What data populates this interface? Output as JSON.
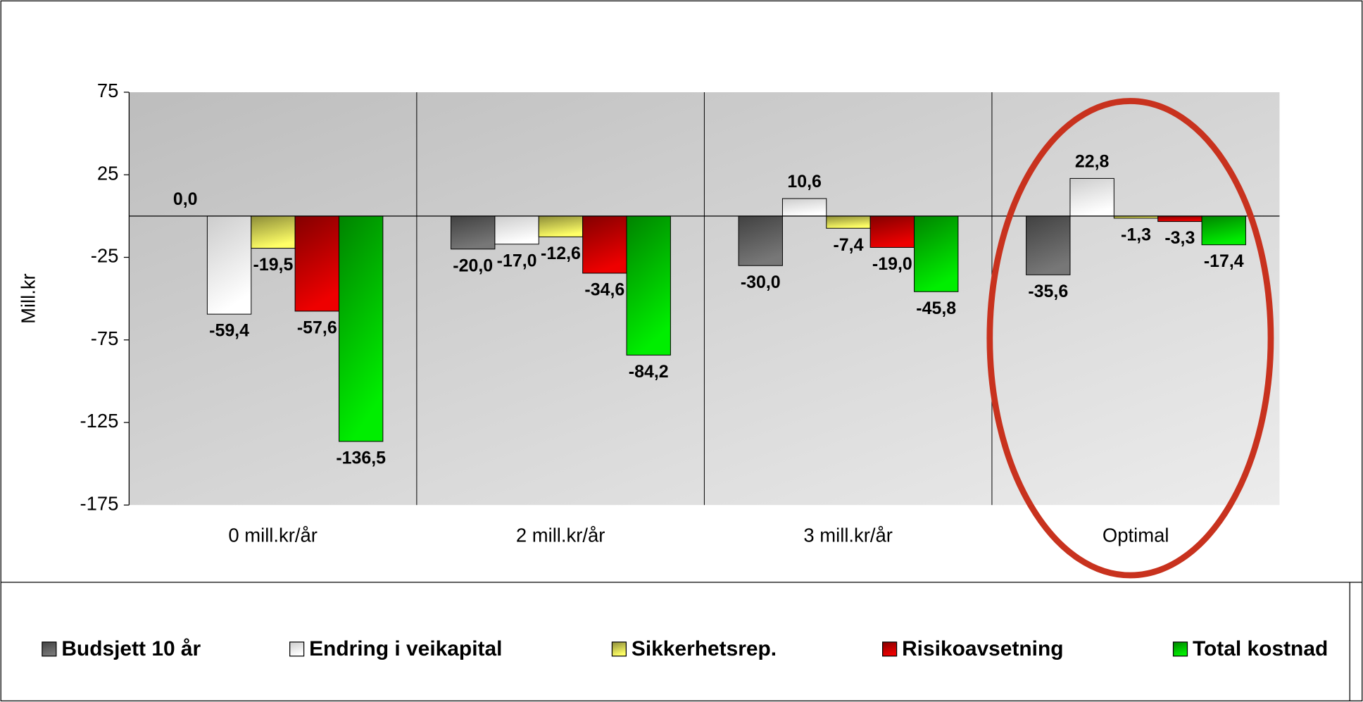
{
  "chart_data": {
    "type": "bar",
    "ylabel": "Mill.kr",
    "categories": [
      "0 mill.kr/år",
      "2 mill.kr/år",
      "3 mill.kr/år",
      "Optimal"
    ],
    "ylim": [
      -175,
      75
    ],
    "yticks": [
      75,
      25,
      -25,
      -75,
      -125,
      -175
    ],
    "grid": true,
    "series": [
      {
        "name": "Budsjett 10 år",
        "color": "#777777",
        "values": [
          0.0,
          -20.0,
          -30.0,
          -35.6
        ],
        "value_labels": [
          "0,0",
          "-20,0",
          "-30,0",
          "-35,6"
        ]
      },
      {
        "name": "Endring i veikapital",
        "color": "#ffffff",
        "values": [
          -59.4,
          -17.0,
          10.6,
          22.8
        ],
        "value_labels": [
          "-59,4",
          "-17,0",
          "10,6",
          "22,8"
        ]
      },
      {
        "name": "Sikkerhetsrep.",
        "color": "#ffff66",
        "values": [
          -19.5,
          -12.6,
          -7.4,
          -1.3
        ],
        "value_labels": [
          "-19,5",
          "-12,6",
          "-7,4",
          "-1,3"
        ]
      },
      {
        "name": "Risikoavsetning",
        "color": "#ee0000",
        "values": [
          -57.6,
          -34.6,
          -19.0,
          -3.3
        ],
        "value_labels": [
          "-57,6",
          "-34,6",
          "-19,0",
          "-3,3"
        ]
      },
      {
        "name": "Total kostnad",
        "color": "#00ee00",
        "values": [
          -136.5,
          -84.2,
          -45.8,
          -17.4
        ],
        "value_labels": [
          "-136,5",
          "-84,2",
          "-45,8",
          "-17,4"
        ]
      }
    ]
  }
}
